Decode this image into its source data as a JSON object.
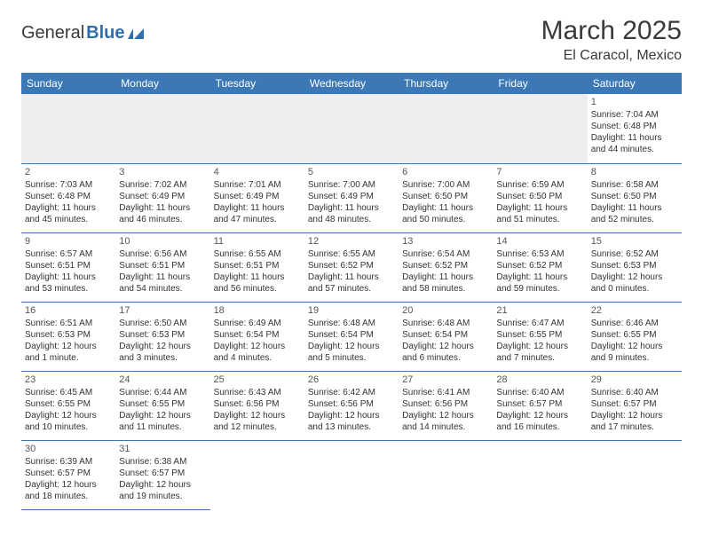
{
  "logo": {
    "part1": "General",
    "part2": "Blue"
  },
  "title": "March 2025",
  "location": "El Caracol, Mexico",
  "colors": {
    "header_bg": "#3b78b5",
    "header_text": "#ffffff",
    "border": "#3b78b5",
    "blank_bg": "#eeeeee",
    "logo_accent": "#2f6fad"
  },
  "weekdays": [
    "Sunday",
    "Monday",
    "Tuesday",
    "Wednesday",
    "Thursday",
    "Friday",
    "Saturday"
  ],
  "days": {
    "1": {
      "sunrise": "7:04 AM",
      "sunset": "6:48 PM",
      "daylight": "11 hours and 44 minutes."
    },
    "2": {
      "sunrise": "7:03 AM",
      "sunset": "6:48 PM",
      "daylight": "11 hours and 45 minutes."
    },
    "3": {
      "sunrise": "7:02 AM",
      "sunset": "6:49 PM",
      "daylight": "11 hours and 46 minutes."
    },
    "4": {
      "sunrise": "7:01 AM",
      "sunset": "6:49 PM",
      "daylight": "11 hours and 47 minutes."
    },
    "5": {
      "sunrise": "7:00 AM",
      "sunset": "6:49 PM",
      "daylight": "11 hours and 48 minutes."
    },
    "6": {
      "sunrise": "7:00 AM",
      "sunset": "6:50 PM",
      "daylight": "11 hours and 50 minutes."
    },
    "7": {
      "sunrise": "6:59 AM",
      "sunset": "6:50 PM",
      "daylight": "11 hours and 51 minutes."
    },
    "8": {
      "sunrise": "6:58 AM",
      "sunset": "6:50 PM",
      "daylight": "11 hours and 52 minutes."
    },
    "9": {
      "sunrise": "6:57 AM",
      "sunset": "6:51 PM",
      "daylight": "11 hours and 53 minutes."
    },
    "10": {
      "sunrise": "6:56 AM",
      "sunset": "6:51 PM",
      "daylight": "11 hours and 54 minutes."
    },
    "11": {
      "sunrise": "6:55 AM",
      "sunset": "6:51 PM",
      "daylight": "11 hours and 56 minutes."
    },
    "12": {
      "sunrise": "6:55 AM",
      "sunset": "6:52 PM",
      "daylight": "11 hours and 57 minutes."
    },
    "13": {
      "sunrise": "6:54 AM",
      "sunset": "6:52 PM",
      "daylight": "11 hours and 58 minutes."
    },
    "14": {
      "sunrise": "6:53 AM",
      "sunset": "6:52 PM",
      "daylight": "11 hours and 59 minutes."
    },
    "15": {
      "sunrise": "6:52 AM",
      "sunset": "6:53 PM",
      "daylight": "12 hours and 0 minutes."
    },
    "16": {
      "sunrise": "6:51 AM",
      "sunset": "6:53 PM",
      "daylight": "12 hours and 1 minute."
    },
    "17": {
      "sunrise": "6:50 AM",
      "sunset": "6:53 PM",
      "daylight": "12 hours and 3 minutes."
    },
    "18": {
      "sunrise": "6:49 AM",
      "sunset": "6:54 PM",
      "daylight": "12 hours and 4 minutes."
    },
    "19": {
      "sunrise": "6:48 AM",
      "sunset": "6:54 PM",
      "daylight": "12 hours and 5 minutes."
    },
    "20": {
      "sunrise": "6:48 AM",
      "sunset": "6:54 PM",
      "daylight": "12 hours and 6 minutes."
    },
    "21": {
      "sunrise": "6:47 AM",
      "sunset": "6:55 PM",
      "daylight": "12 hours and 7 minutes."
    },
    "22": {
      "sunrise": "6:46 AM",
      "sunset": "6:55 PM",
      "daylight": "12 hours and 9 minutes."
    },
    "23": {
      "sunrise": "6:45 AM",
      "sunset": "6:55 PM",
      "daylight": "12 hours and 10 minutes."
    },
    "24": {
      "sunrise": "6:44 AM",
      "sunset": "6:55 PM",
      "daylight": "12 hours and 11 minutes."
    },
    "25": {
      "sunrise": "6:43 AM",
      "sunset": "6:56 PM",
      "daylight": "12 hours and 12 minutes."
    },
    "26": {
      "sunrise": "6:42 AM",
      "sunset": "6:56 PM",
      "daylight": "12 hours and 13 minutes."
    },
    "27": {
      "sunrise": "6:41 AM",
      "sunset": "6:56 PM",
      "daylight": "12 hours and 14 minutes."
    },
    "28": {
      "sunrise": "6:40 AM",
      "sunset": "6:57 PM",
      "daylight": "12 hours and 16 minutes."
    },
    "29": {
      "sunrise": "6:40 AM",
      "sunset": "6:57 PM",
      "daylight": "12 hours and 17 minutes."
    },
    "30": {
      "sunrise": "6:39 AM",
      "sunset": "6:57 PM",
      "daylight": "12 hours and 18 minutes."
    },
    "31": {
      "sunrise": "6:38 AM",
      "sunset": "6:57 PM",
      "daylight": "12 hours and 19 minutes."
    }
  },
  "labels": {
    "sunrise": "Sunrise:",
    "sunset": "Sunset:",
    "daylight": "Daylight:"
  },
  "layout": {
    "first_weekday_index": 6,
    "num_days": 31
  }
}
